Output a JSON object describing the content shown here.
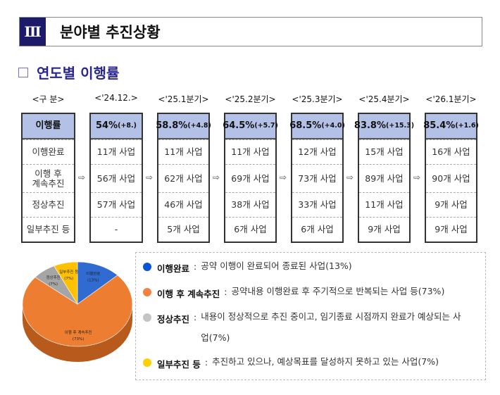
{
  "header": {
    "section_number": "Ⅲ",
    "title": "분야별 추진상황"
  },
  "subtitle": "연도별 이행률",
  "table": {
    "label_header": "<구 분>",
    "row_labels": [
      "이행률",
      "이행완료",
      "이행 후\n계속추진",
      "정상추진",
      "일부추진 등"
    ],
    "periods": [
      {
        "label": "<'24.12.>",
        "rate": "54%",
        "delta": "(+8.)",
        "values": [
          "11개 사업",
          "56개 사업",
          "57개 사업",
          "-"
        ]
      },
      {
        "label": "<'25.1분기>",
        "rate": "58.8%",
        "delta": "(+4.8)",
        "values": [
          "11개 사업",
          "62개 사업",
          "46개 사업",
          "5개 사업"
        ]
      },
      {
        "label": "<'25.2분기>",
        "rate": "64.5%",
        "delta": "(+5.7)",
        "values": [
          "11개 사업",
          "69개 사업",
          "38개 사업",
          "6개 사업"
        ]
      },
      {
        "label": "<'25.3분기>",
        "rate": "68.5%",
        "delta": "(+4.0)",
        "values": [
          "12개 사업",
          "73개 사업",
          "33개 사업",
          "6개 사업"
        ]
      },
      {
        "label": "<'25.4분기>",
        "rate": "83.8%",
        "delta": "(+15.3)",
        "values": [
          "15개 사업",
          "89개 사업",
          "11개 사업",
          "9개 사업"
        ]
      },
      {
        "label": "<'26.1분기>",
        "rate": "85.4%",
        "delta": "(+1.6)",
        "values": [
          "16개 사업",
          "90개 사업",
          "9개 사업",
          "9개 사업"
        ]
      }
    ],
    "arrow": "⇨"
  },
  "chart_data": {
    "type": "pie",
    "categories": [
      "이행완료",
      "이행 후 계속추진",
      "정상추진",
      "일부추진 등"
    ],
    "values": [
      13,
      73,
      7,
      7
    ],
    "labels": [
      "(13%)",
      "(73%)",
      "(7%)",
      "(7%)"
    ],
    "colors": [
      "#2f6bd0",
      "#ed7d31",
      "#a5a5a5",
      "#ffc000"
    ]
  },
  "legend": [
    {
      "term": "이행완료",
      "sep": ":",
      "desc": "공약 이행이 완료되어 종료된 사업(13%)",
      "color": "#0a52d6"
    },
    {
      "term": "이행 후 계속추진",
      "sep": ":",
      "desc": "공약내용 이행완료 후 주기적으로 반복되는 사업 등(73%)",
      "color": "#f5813f"
    },
    {
      "term": "정상추진",
      "sep": ":",
      "desc": "내용이 정상적으로 추진 중이고, 임기종료 시점까지 완료가 예상되는 사업(7%)",
      "color": "#c4c4c4"
    },
    {
      "term": "일부추진 등",
      "sep": ":",
      "desc": "추진하고 있으나, 예상목표를 달성하지 못하고 있는 사업(7%)",
      "color": "#ffd000"
    }
  ]
}
